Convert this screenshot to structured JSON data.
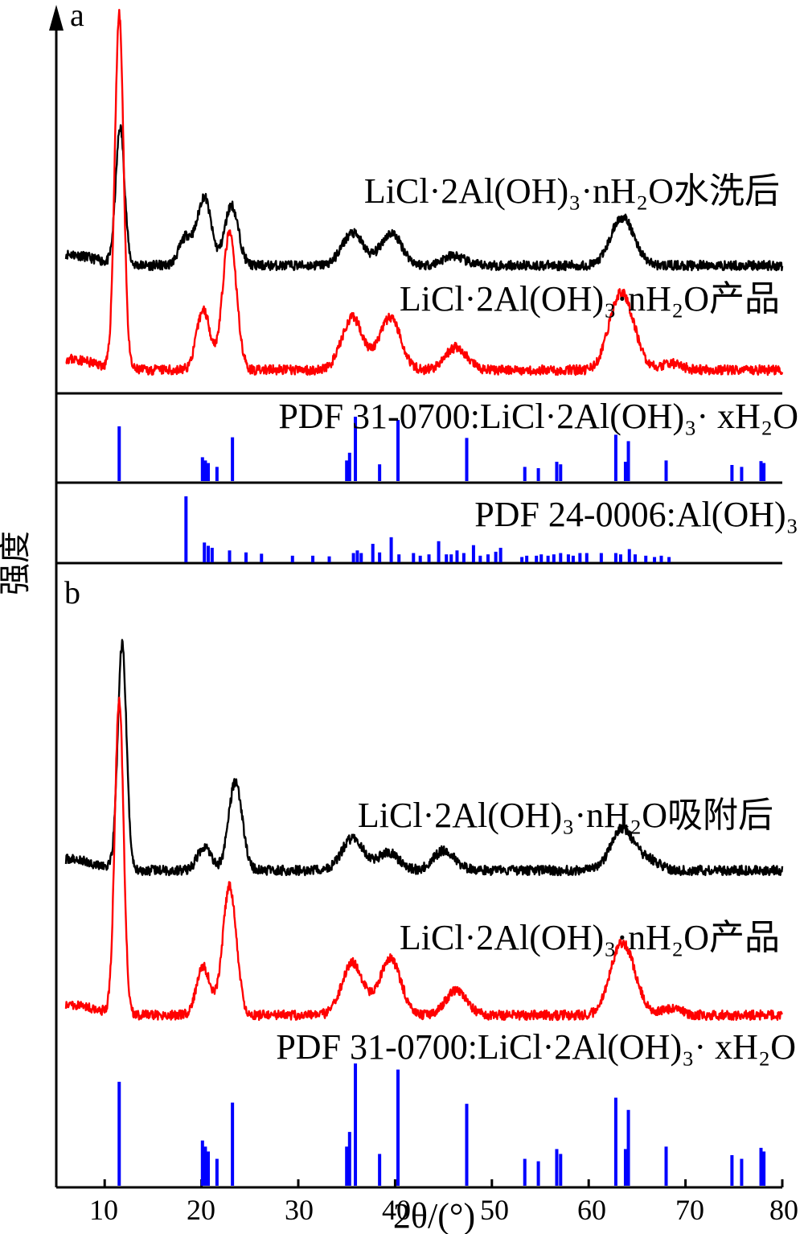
{
  "chart_data": {
    "type": "line",
    "xlabel": "2θ/(°)",
    "ylabel": "强度",
    "xlim": [
      5,
      80
    ],
    "x_ticks": [
      "10",
      "20",
      "30",
      "40",
      "50",
      "60",
      "70",
      "80"
    ],
    "panels": [
      {
        "label": "a",
        "series": [
          {
            "name": "LiCl·2Al(OH)₃·nH₂O水洗后",
            "color": "#000000",
            "peaks": [
              [
                11.6,
                170
              ],
              [
                18.4,
                35
              ],
              [
                20.3,
                85
              ],
              [
                23.1,
                75
              ],
              [
                35.6,
                40
              ],
              [
                39.6,
                40
              ],
              [
                46,
                12
              ],
              [
                63.2,
                45
              ],
              [
                64.2,
                20
              ]
            ],
            "baseline": 0.45
          },
          {
            "name": "LiCl·2Al(OH)₃·nH₂O产品",
            "color": "#ff0000",
            "peaks": [
              [
                11.5,
                440
              ],
              [
                20.2,
                75
              ],
              [
                22.9,
                170
              ],
              [
                35.6,
                65
              ],
              [
                39.5,
                65
              ],
              [
                46.3,
                28
              ],
              [
                63,
                70
              ],
              [
                64.2,
                40
              ],
              [
                68.5,
                8
              ]
            ],
            "baseline": 0.45
          }
        ],
        "reference_patterns": [
          {
            "name": "PDF 31-0700:LiCl·2Al(OH)₃· xH₂O",
            "color": "#0000ff",
            "lines": [
              [
                11.5,
                0.85
              ],
              [
                20.1,
                0.37
              ],
              [
                20.4,
                0.32
              ],
              [
                20.7,
                0.28
              ],
              [
                21.6,
                0.22
              ],
              [
                23.2,
                0.68
              ],
              [
                35.0,
                0.32
              ],
              [
                35.3,
                0.44
              ],
              [
                35.9,
                1.0
              ],
              [
                38.4,
                0.26
              ],
              [
                40.3,
                0.95
              ],
              [
                47.4,
                0.67
              ],
              [
                53.4,
                0.22
              ],
              [
                54.8,
                0.2
              ],
              [
                56.7,
                0.3
              ],
              [
                57.1,
                0.26
              ],
              [
                62.8,
                0.72
              ],
              [
                63.8,
                0.3
              ],
              [
                64.1,
                0.62
              ],
              [
                68.0,
                0.32
              ],
              [
                74.8,
                0.25
              ],
              [
                75.8,
                0.22
              ],
              [
                77.8,
                0.31
              ],
              [
                78.1,
                0.28
              ]
            ]
          },
          {
            "name": "PDF 24-0006:Al(OH)₃",
            "color": "#0000ff",
            "lines": [
              [
                18.4,
                1.0
              ],
              [
                20.3,
                0.3
              ],
              [
                20.7,
                0.25
              ],
              [
                21.1,
                0.22
              ],
              [
                22.9,
                0.18
              ],
              [
                24.6,
                0.15
              ],
              [
                26.2,
                0.13
              ],
              [
                29.4,
                0.1
              ],
              [
                31.5,
                0.1
              ],
              [
                33.2,
                0.09
              ],
              [
                35.7,
                0.14
              ],
              [
                36.1,
                0.18
              ],
              [
                36.5,
                0.14
              ],
              [
                37.7,
                0.28
              ],
              [
                38.4,
                0.15
              ],
              [
                39.6,
                0.38
              ],
              [
                40.4,
                0.12
              ],
              [
                41.9,
                0.14
              ],
              [
                42.6,
                0.1
              ],
              [
                43.5,
                0.12
              ],
              [
                44.5,
                0.32
              ],
              [
                45.3,
                0.12
              ],
              [
                45.8,
                0.12
              ],
              [
                46.4,
                0.18
              ],
              [
                47.1,
                0.14
              ],
              [
                48.1,
                0.26
              ],
              [
                48.8,
                0.1
              ],
              [
                49.6,
                0.12
              ],
              [
                50.4,
                0.16
              ],
              [
                50.9,
                0.22
              ],
              [
                53.1,
                0.08
              ],
              [
                53.6,
                0.1
              ],
              [
                54.6,
                0.1
              ],
              [
                55.1,
                0.12
              ],
              [
                55.8,
                0.1
              ],
              [
                56.4,
                0.12
              ],
              [
                57.1,
                0.14
              ],
              [
                57.9,
                0.12
              ],
              [
                58.4,
                0.1
              ],
              [
                59.1,
                0.14
              ],
              [
                59.8,
                0.14
              ],
              [
                61.3,
                0.14
              ],
              [
                62.8,
                0.14
              ],
              [
                63.3,
                0.12
              ],
              [
                64.2,
                0.2
              ],
              [
                64.8,
                0.12
              ],
              [
                65.9,
                0.1
              ],
              [
                66.8,
                0.08
              ],
              [
                67.5,
                0.1
              ],
              [
                68.3,
                0.08
              ]
            ]
          }
        ]
      },
      {
        "label": "b",
        "series": [
          {
            "name": "LiCl·2Al(OH)₃·nH₂O吸附后",
            "color": "#000000",
            "peaks": [
              [
                11.8,
                280
              ],
              [
                20.3,
                30
              ],
              [
                23.5,
                110
              ],
              [
                35.6,
                40
              ],
              [
                39.3,
                22
              ],
              [
                45.1,
                25
              ],
              [
                63.2,
                38
              ],
              [
                64.1,
                18
              ],
              [
                66.2,
                12
              ]
            ],
            "baseline": 0.4
          },
          {
            "name": "LiCl·2Al(OH)₃·nH₂O产品",
            "color": "#ff0000",
            "peaks": [
              [
                11.5,
                390
              ],
              [
                20.2,
                60
              ],
              [
                22.9,
                160
              ],
              [
                35.6,
                65
              ],
              [
                39.5,
                70
              ],
              [
                46.3,
                30
              ],
              [
                63.1,
                65
              ],
              [
                64.3,
                38
              ],
              [
                68.5,
                8
              ]
            ],
            "baseline": 0.4
          }
        ],
        "reference_patterns": [
          {
            "name": "PDF 31-0700:LiCl·2Al(OH)₃· xH₂O",
            "color": "#0000ff",
            "lines": [
              [
                11.5,
                0.85
              ],
              [
                20.1,
                0.37
              ],
              [
                20.4,
                0.32
              ],
              [
                20.7,
                0.28
              ],
              [
                21.6,
                0.22
              ],
              [
                23.2,
                0.68
              ],
              [
                35.0,
                0.32
              ],
              [
                35.3,
                0.44
              ],
              [
                35.9,
                1.0
              ],
              [
                38.4,
                0.26
              ],
              [
                40.3,
                0.95
              ],
              [
                47.4,
                0.67
              ],
              [
                53.4,
                0.22
              ],
              [
                54.8,
                0.2
              ],
              [
                56.7,
                0.3
              ],
              [
                57.1,
                0.26
              ],
              [
                62.8,
                0.72
              ],
              [
                63.8,
                0.3
              ],
              [
                64.1,
                0.62
              ],
              [
                68.0,
                0.32
              ],
              [
                74.8,
                0.25
              ],
              [
                75.8,
                0.22
              ],
              [
                77.8,
                0.31
              ],
              [
                78.1,
                0.28
              ]
            ]
          }
        ]
      }
    ]
  }
}
